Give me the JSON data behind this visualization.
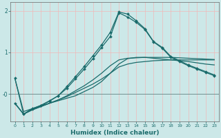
{
  "xlabel": "Humidex (Indice chaleur)",
  "bg_color": "#cce8e8",
  "grid_color": "#f0b8b8",
  "line_color": "#1a6b6b",
  "x": [
    0,
    1,
    2,
    3,
    4,
    5,
    6,
    7,
    8,
    9,
    10,
    11,
    12,
    13,
    14,
    15,
    16,
    17,
    18,
    19,
    20,
    21,
    22,
    23
  ],
  "line1": [
    0.38,
    -0.42,
    -0.35,
    -0.28,
    -0.22,
    -0.16,
    -0.1,
    -0.04,
    0.06,
    0.16,
    0.3,
    0.5,
    0.72,
    0.85,
    0.88,
    0.88,
    0.86,
    0.84,
    0.82,
    0.8,
    0.78,
    0.75,
    0.72,
    0.7
  ],
  "line2": [
    -0.22,
    -0.48,
    -0.38,
    -0.3,
    -0.22,
    -0.14,
    -0.06,
    0.04,
    0.14,
    0.24,
    0.36,
    0.5,
    0.65,
    0.72,
    0.76,
    0.78,
    0.8,
    0.81,
    0.82,
    0.82,
    0.82,
    0.82,
    0.82,
    0.82
  ],
  "line3": [
    -0.22,
    -0.48,
    -0.38,
    -0.3,
    -0.22,
    -0.14,
    -0.04,
    0.08,
    0.2,
    0.34,
    0.5,
    0.68,
    0.82,
    0.86,
    0.87,
    0.88,
    0.88,
    0.88,
    0.88,
    0.87,
    0.86,
    0.85,
    0.84,
    0.83
  ],
  "line4_marked": [
    0.38,
    -0.48,
    -0.35,
    -0.27,
    -0.16,
    -0.04,
    0.14,
    0.37,
    0.6,
    0.85,
    1.12,
    1.38,
    1.95,
    1.85,
    1.72,
    1.55,
    1.25,
    1.1,
    0.88,
    0.78,
    0.68,
    0.6,
    0.52,
    0.44
  ],
  "line5_marked": [
    -0.22,
    -0.48,
    -0.36,
    -0.28,
    -0.17,
    -0.04,
    0.18,
    0.42,
    0.66,
    0.92,
    1.18,
    1.48,
    1.97,
    1.92,
    1.76,
    1.57,
    1.26,
    1.12,
    0.9,
    0.8,
    0.7,
    0.62,
    0.54,
    0.46
  ],
  "xlim": [
    -0.5,
    23.5
  ],
  "ylim": [
    -0.65,
    2.2
  ],
  "yticks": [
    0,
    1,
    2
  ],
  "ytick_labels": [
    "-0",
    "1",
    "2"
  ],
  "xticks": [
    0,
    1,
    2,
    3,
    4,
    5,
    6,
    7,
    8,
    9,
    10,
    11,
    12,
    13,
    14,
    15,
    16,
    17,
    18,
    19,
    20,
    21,
    22,
    23
  ]
}
